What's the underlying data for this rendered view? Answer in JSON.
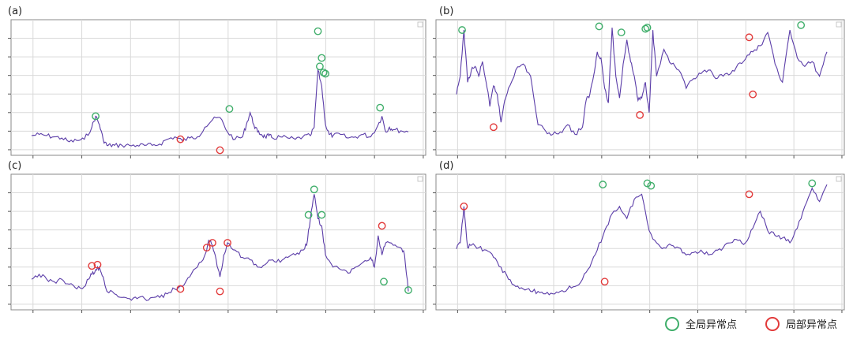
{
  "figure": {
    "legend": {
      "global_label": "全局异常点",
      "local_label": "局部异常点",
      "global_color": "#3fae6a",
      "local_color": "#e23a3a"
    },
    "series_color": "#5b3da8",
    "grid_color": "#d9d9d9"
  },
  "chart_data": [
    {
      "label": "(a)",
      "type": "line",
      "grid": true,
      "xlim": [
        0,
        100
      ],
      "ylim": [
        0,
        100
      ],
      "x": [
        0,
        2,
        4,
        6,
        8,
        10,
        12,
        14,
        16,
        17,
        18,
        19,
        20,
        21,
        22,
        24,
        26,
        28,
        30,
        32,
        34,
        36,
        38,
        40,
        42,
        44,
        46,
        48,
        50,
        52,
        54,
        56,
        57,
        58,
        59,
        60,
        61,
        62,
        63,
        64,
        66,
        68,
        70,
        72,
        74,
        75,
        76,
        77,
        78,
        79,
        80,
        82,
        84,
        86,
        88,
        90,
        92,
        93,
        94,
        95,
        96,
        98,
        100
      ],
      "y": [
        11,
        12,
        11,
        10,
        9,
        6,
        7,
        8,
        18,
        27,
        20,
        8,
        3,
        3,
        3,
        3,
        3,
        3,
        3,
        3,
        4,
        8,
        10,
        7,
        9,
        10,
        18,
        24,
        26,
        14,
        8,
        10,
        20,
        30,
        20,
        14,
        12,
        10,
        11,
        9,
        10,
        9,
        8,
        10,
        11,
        18,
        65,
        52,
        20,
        12,
        11,
        12,
        9,
        10,
        12,
        10,
        20,
        27,
        14,
        18,
        16,
        15,
        14
      ],
      "global_anomalies": [
        {
          "x": 17,
          "y": 27
        },
        {
          "x": 52.5,
          "y": 33
        },
        {
          "x": 76,
          "y": 97
        },
        {
          "x": 77,
          "y": 75
        },
        {
          "x": 76.5,
          "y": 68
        },
        {
          "x": 77.5,
          "y": 63
        },
        {
          "x": 78,
          "y": 62
        },
        {
          "x": 92.5,
          "y": 34
        }
      ],
      "local_anomalies": [
        {
          "x": 39.5,
          "y": 8
        },
        {
          "x": 50,
          "y": -1
        }
      ]
    },
    {
      "label": "(b)",
      "type": "line",
      "grid": true,
      "xlim": [
        0,
        100
      ],
      "ylim": [
        0,
        100
      ],
      "x": [
        0,
        1,
        2,
        3,
        4,
        5,
        6,
        7,
        8,
        9,
        10,
        11,
        12,
        13,
        14,
        16,
        18,
        20,
        22,
        24,
        26,
        28,
        30,
        32,
        34,
        35,
        36,
        37,
        38,
        39,
        40,
        41,
        42,
        43,
        44,
        45,
        46,
        47,
        48,
        49,
        50,
        51,
        52,
        53,
        54,
        56,
        58,
        60,
        62,
        64,
        66,
        68,
        70,
        72,
        74,
        76,
        78,
        80,
        82,
        84,
        86,
        88,
        90,
        92,
        94,
        96,
        98,
        100
      ],
      "y": [
        45,
        60,
        98,
        55,
        65,
        68,
        60,
        72,
        55,
        35,
        52,
        45,
        22,
        40,
        50,
        65,
        70,
        60,
        20,
        15,
        12,
        14,
        20,
        12,
        18,
        40,
        45,
        60,
        80,
        75,
        50,
        38,
        100,
        60,
        42,
        70,
        90,
        72,
        60,
        40,
        42,
        55,
        30,
        98,
        60,
        82,
        70,
        65,
        50,
        58,
        62,
        65,
        58,
        60,
        62,
        70,
        74,
        80,
        85,
        96,
        70,
        55,
        98,
        75,
        68,
        72,
        60,
        80
      ],
      "global_anomalies": [
        {
          "x": 1.5,
          "y": 98
        },
        {
          "x": 38.5,
          "y": 101
        },
        {
          "x": 44.5,
          "y": 96
        },
        {
          "x": 51,
          "y": 99
        },
        {
          "x": 51.5,
          "y": 100
        },
        {
          "x": 93,
          "y": 102
        }
      ],
      "local_anomalies": [
        {
          "x": 10,
          "y": 18
        },
        {
          "x": 49.5,
          "y": 28
        },
        {
          "x": 79,
          "y": 92
        },
        {
          "x": 80,
          "y": 45
        }
      ]
    },
    {
      "label": "(c)",
      "type": "line",
      "grid": true,
      "xlim": [
        0,
        100
      ],
      "ylim": [
        0,
        100
      ],
      "x": [
        0,
        2,
        4,
        6,
        8,
        10,
        12,
        14,
        15,
        16,
        17,
        18,
        19,
        20,
        22,
        24,
        26,
        28,
        30,
        32,
        34,
        36,
        38,
        40,
        42,
        44,
        46,
        47,
        48,
        49,
        50,
        51,
        52,
        54,
        56,
        58,
        60,
        62,
        64,
        66,
        68,
        70,
        72,
        73,
        74,
        75,
        76,
        77,
        78,
        80,
        82,
        84,
        86,
        88,
        90,
        91,
        92,
        93,
        94,
        96,
        98,
        99,
        100
      ],
      "y": [
        20,
        24,
        20,
        18,
        20,
        16,
        12,
        14,
        20,
        24,
        28,
        30,
        22,
        10,
        8,
        5,
        4,
        4,
        4,
        5,
        5,
        8,
        12,
        14,
        22,
        30,
        40,
        52,
        48,
        36,
        22,
        40,
        50,
        44,
        38,
        36,
        30,
        32,
        36,
        34,
        38,
        40,
        44,
        48,
        70,
        90,
        70,
        64,
        40,
        30,
        28,
        25,
        30,
        34,
        38,
        30,
        56,
        40,
        50,
        48,
        46,
        40,
        10
      ],
      "global_anomalies": [
        {
          "x": 73.5,
          "y": 73
        },
        {
          "x": 75,
          "y": 94
        },
        {
          "x": 77,
          "y": 73
        },
        {
          "x": 93.5,
          "y": 18
        },
        {
          "x": 100,
          "y": 11
        }
      ],
      "local_anomalies": [
        {
          "x": 16,
          "y": 31
        },
        {
          "x": 17.5,
          "y": 32
        },
        {
          "x": 39.5,
          "y": 12
        },
        {
          "x": 46.5,
          "y": 46
        },
        {
          "x": 48,
          "y": 50
        },
        {
          "x": 50,
          "y": 10
        },
        {
          "x": 52,
          "y": 50
        },
        {
          "x": 93,
          "y": 64
        }
      ]
    },
    {
      "label": "(d)",
      "type": "line",
      "grid": true,
      "xlim": [
        0,
        100
      ],
      "ylim": [
        0,
        100
      ],
      "x": [
        0,
        1,
        2,
        3,
        4,
        6,
        8,
        10,
        12,
        14,
        16,
        18,
        20,
        22,
        24,
        26,
        28,
        30,
        32,
        34,
        36,
        38,
        40,
        42,
        44,
        46,
        48,
        50,
        52,
        54,
        56,
        58,
        60,
        62,
        64,
        66,
        68,
        70,
        72,
        74,
        76,
        78,
        80,
        82,
        84,
        86,
        88,
        90,
        92,
        94,
        96,
        98,
        100
      ],
      "y": [
        45,
        50,
        80,
        46,
        48,
        46,
        44,
        38,
        30,
        20,
        14,
        12,
        10,
        10,
        8,
        8,
        10,
        12,
        14,
        20,
        30,
        44,
        60,
        74,
        80,
        70,
        86,
        90,
        60,
        50,
        46,
        48,
        46,
        40,
        42,
        44,
        40,
        44,
        46,
        50,
        52,
        50,
        62,
        76,
        60,
        56,
        54,
        50,
        62,
        80,
        95,
        84,
        98
      ],
      "global_anomalies": [
        {
          "x": 39.5,
          "y": 98
        },
        {
          "x": 51.5,
          "y": 99
        },
        {
          "x": 52.5,
          "y": 97
        },
        {
          "x": 96,
          "y": 99
        }
      ],
      "local_anomalies": [
        {
          "x": 2,
          "y": 80
        },
        {
          "x": 40,
          "y": 18
        },
        {
          "x": 79,
          "y": 90
        }
      ]
    }
  ]
}
